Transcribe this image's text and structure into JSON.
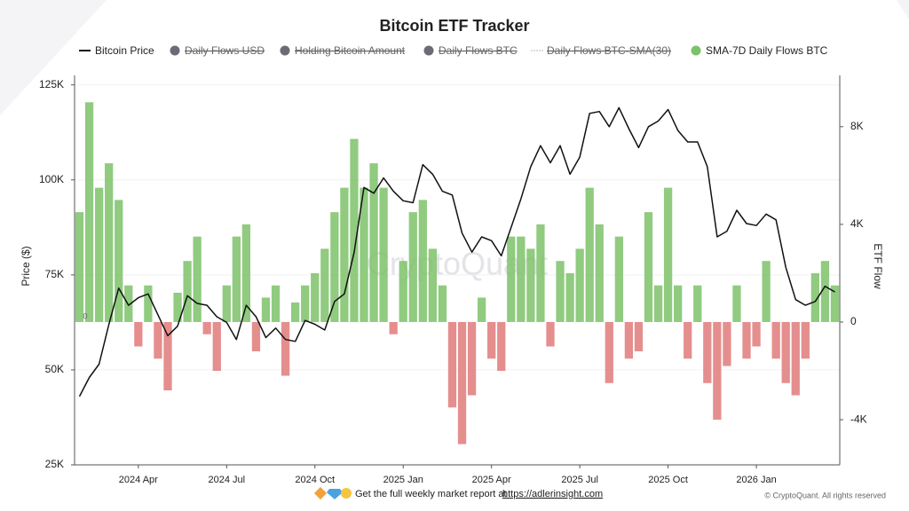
{
  "chart_data": {
    "type": "bar-line",
    "title": "Bitcoin ETF Tracker",
    "y_label": "Price ($)",
    "y2_label": "ETF Flow",
    "watermark": "CryptoQuant",
    "zero_marker": "0",
    "footer": "Get the full weekly market report at",
    "footer_link": "https://adlerinsight.com",
    "copyright": "© CryptoQuant. All rights reserved",
    "hidden_legend": [
      {
        "name": "Daily Flows USD",
        "color": "#6b6b78"
      },
      {
        "name": "Holding Bitcoin Amount",
        "color": "#6b6b78"
      },
      {
        "name": "Daily Flows BTC",
        "color": "#6b6b78"
      },
      {
        "name": "Daily Flows BTC-SMA(30)",
        "color": "#bbbbbb"
      }
    ],
    "categories": [
      null,
      null,
      null,
      null,
      null,
      null,
      "2024 Apr",
      null,
      null,
      null,
      null,
      null,
      null,
      null,
      null,
      "2024 Jul",
      null,
      null,
      null,
      null,
      null,
      null,
      null,
      null,
      "2024 Oct",
      null,
      null,
      null,
      null,
      null,
      null,
      null,
      null,
      "2025 Jan",
      null,
      null,
      null,
      null,
      null,
      null,
      null,
      null,
      "2025 Apr",
      null,
      null,
      null,
      null,
      null,
      null,
      null,
      null,
      "2025 Jul",
      null,
      null,
      null,
      null,
      null,
      null,
      null,
      null,
      "2025 Oct",
      null,
      null,
      null,
      null,
      null,
      null,
      null,
      null,
      "2026 Jan",
      null,
      null,
      null,
      null,
      null,
      null,
      null,
      null
    ],
    "series": [
      {
        "name": "Bitcoin Price",
        "color": "#111111",
        "kind": "line",
        "values": [
          43000,
          48000,
          51500,
          62000,
          71500,
          67000,
          69000,
          70000,
          64500,
          59000,
          61500,
          69500,
          67500,
          67000,
          64000,
          62500,
          58000,
          67000,
          64000,
          58500,
          61000,
          58000,
          57500,
          63000,
          62000,
          60500,
          68000,
          70000,
          81000,
          98000,
          96500,
          100500,
          97000,
          94500,
          94000,
          104000,
          101500,
          97000,
          96000,
          86000,
          81000,
          85000,
          84000,
          80000,
          87500,
          95000,
          103500,
          109000,
          104500,
          109000,
          101500,
          106000,
          117500,
          118000,
          114000,
          119000,
          113500,
          108500,
          114000,
          115500,
          118500,
          113000,
          110000,
          110000,
          103500,
          85000,
          86500,
          92000,
          88500,
          88000,
          91000,
          89500,
          77000,
          68500,
          67000,
          68000,
          72000,
          70500
        ]
      },
      {
        "name": "SMA-7D Daily Flows BTC",
        "color": "#7cc26a",
        "negative_color": "#e07a7a",
        "kind": "bar",
        "axis": "y2",
        "values": [
          4500,
          9000,
          5500,
          6500,
          5000,
          1500,
          -1000,
          1500,
          -1500,
          -2800,
          1200,
          2500,
          3500,
          -500,
          -2000,
          1500,
          3500,
          4000,
          -1200,
          1000,
          1500,
          -2200,
          800,
          1500,
          2000,
          3000,
          4500,
          5500,
          7500,
          5500,
          6500,
          5500,
          -500,
          2500,
          4500,
          5000,
          3000,
          1500,
          -3500,
          -5000,
          -3000,
          1000,
          -1500,
          -2000,
          3500,
          3500,
          3000,
          4000,
          -1000,
          2500,
          2000,
          3000,
          5500,
          4000,
          -2500,
          3500,
          -1500,
          -1200,
          4500,
          1500,
          5500,
          1500,
          -1500,
          1500,
          -2500,
          -4000,
          -1800,
          1500,
          -1500,
          -1000,
          2500,
          -1500,
          -2500,
          -3000,
          -1500,
          2000,
          2500,
          1500
        ]
      }
    ],
    "ylim": [
      25000,
      127500
    ],
    "yticks": [
      {
        "value": 25000,
        "label": "25K"
      },
      {
        "value": 50000,
        "label": "50K"
      },
      {
        "value": 75000,
        "label": "75K"
      },
      {
        "value": 100000,
        "label": "100K"
      },
      {
        "value": 125000,
        "label": "125K"
      }
    ],
    "y2lim": [
      -5850,
      10100
    ],
    "y2ticks": [
      {
        "value": -4000,
        "label": "-4K"
      },
      0,
      {
        "value": 4000,
        "label": "4K"
      },
      {
        "value": 8000,
        "label": "8K"
      }
    ],
    "grid": true
  }
}
